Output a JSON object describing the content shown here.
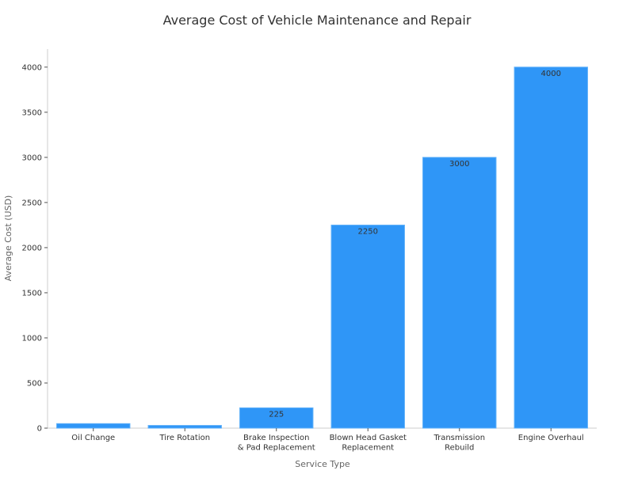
{
  "chart_data": {
    "type": "bar",
    "title": "Average Cost of Vehicle Maintenance and Repair",
    "xlabel": "Service Type",
    "ylabel": "Average Cost (USD)",
    "categories": [
      "Oil Change",
      "Tire Rotation",
      "Brake Inspection\n& Pad Replacement",
      "Blown Head Gasket\nReplacement",
      "Transmission\nRebuild",
      "Engine Overhaul"
    ],
    "values": [
      50,
      30,
      225,
      2250,
      3000,
      4000
    ],
    "data_labels": [
      "",
      "",
      "225",
      "2250",
      "3000",
      "4000"
    ],
    "yticks": [
      0,
      500,
      1000,
      1500,
      2000,
      2500,
      3000,
      3500,
      4000
    ],
    "ylim": [
      0,
      4200
    ],
    "grid": false,
    "legend": "none",
    "colors": {
      "bar": "#2f96f7",
      "bar_edge": "#5fb0f9",
      "title": "#333333",
      "axis_title": "#666666"
    }
  }
}
